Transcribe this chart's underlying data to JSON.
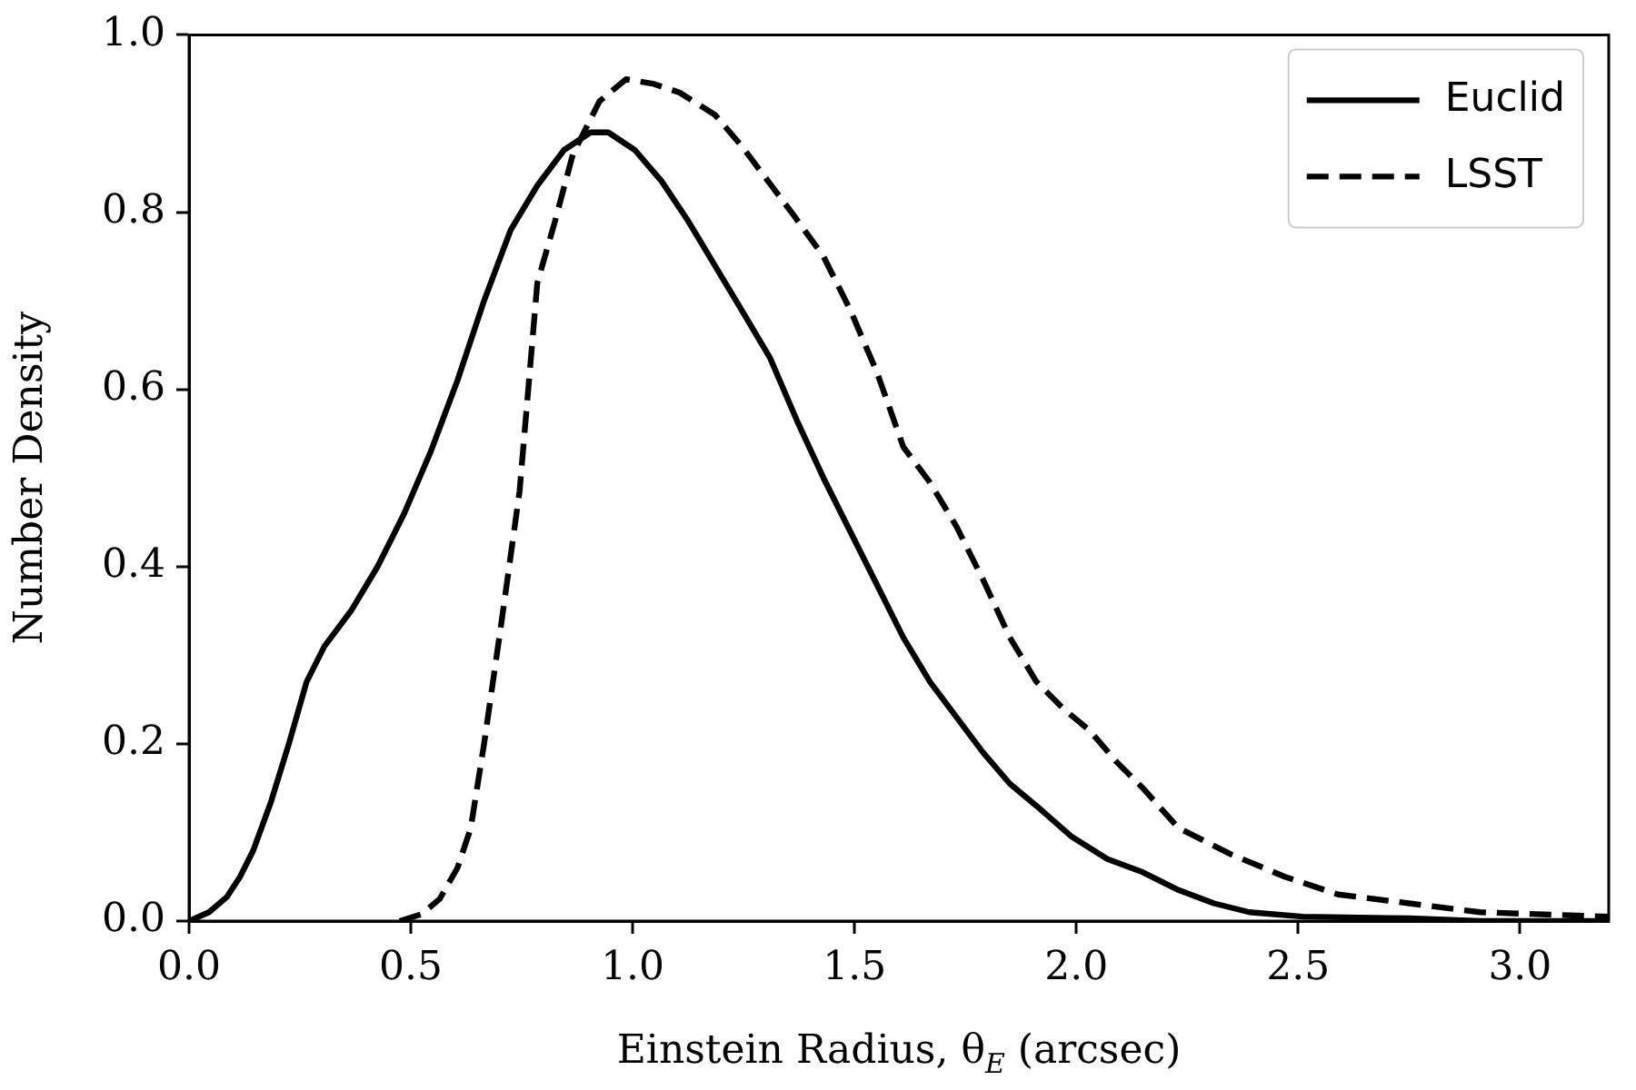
{
  "chart_data": {
    "type": "line",
    "xlabel": "Einstein Radius, θ$_{E}$ (arcsec)",
    "ylabel": "Number Density",
    "xlim": [
      0,
      3.2
    ],
    "ylim": [
      0,
      1
    ],
    "xticks": [
      {
        "value": 0,
        "label": "0.0"
      },
      {
        "value": 0.5,
        "label": "0.5"
      },
      {
        "value": 1,
        "label": "1.0"
      },
      {
        "value": 1.5,
        "label": "1.5"
      },
      {
        "value": 2,
        "label": "2.0"
      },
      {
        "value": 2.5,
        "label": "2.5"
      },
      {
        "value": 3,
        "label": "3.0"
      }
    ],
    "yticks": [
      {
        "value": 0,
        "label": "0.0"
      },
      {
        "value": 0.2,
        "label": "0.2"
      },
      {
        "value": 0.4,
        "label": "0.4"
      },
      {
        "value": 0.6,
        "label": "0.6"
      },
      {
        "value": 0.8,
        "label": "0.8"
      },
      {
        "value": 1,
        "label": "1.0"
      }
    ],
    "grid": false,
    "legend": "top right",
    "marker": "none",
    "series": [
      {
        "name": "Euclid",
        "color": "#000000",
        "line_style": "solid",
        "x": [
          0,
          0.045,
          0.085,
          0.115,
          0.145,
          0.185,
          0.225,
          0.265,
          0.305,
          0.365,
          0.425,
          0.485,
          0.545,
          0.605,
          0.665,
          0.725,
          0.785,
          0.845,
          0.905,
          0.945,
          1.005,
          1.065,
          1.125,
          1.185,
          1.245,
          1.31,
          1.37,
          1.43,
          1.49,
          1.55,
          1.61,
          1.67,
          1.73,
          1.79,
          1.85,
          1.91,
          1.99,
          2.07,
          2.15,
          2.23,
          2.31,
          2.39,
          2.51,
          2.75,
          2.91,
          3.2
        ],
        "values": [
          0,
          0.01,
          0.027,
          0.05,
          0.08,
          0.135,
          0.2,
          0.27,
          0.31,
          0.35,
          0.4,
          0.46,
          0.53,
          0.61,
          0.7,
          0.78,
          0.83,
          0.87,
          0.89,
          0.89,
          0.87,
          0.835,
          0.79,
          0.74,
          0.69,
          0.635,
          0.565,
          0.5,
          0.44,
          0.38,
          0.32,
          0.27,
          0.23,
          0.19,
          0.155,
          0.13,
          0.095,
          0.07,
          0.055,
          0.035,
          0.02,
          0.01,
          0.005,
          0.003,
          0,
          0
        ]
      },
      {
        "name": "LSST",
        "color": "#000000",
        "line_style": "dashed",
        "x": [
          0.475,
          0.525,
          0.565,
          0.605,
          0.635,
          0.665,
          0.705,
          0.745,
          0.785,
          0.825,
          0.865,
          0.925,
          0.985,
          1.045,
          1.105,
          1.185,
          1.245,
          1.305,
          1.365,
          1.43,
          1.49,
          1.55,
          1.61,
          1.67,
          1.73,
          1.79,
          1.85,
          1.91,
          1.97,
          2.03,
          2.09,
          2.15,
          2.23,
          2.35,
          2.47,
          2.59,
          2.75,
          2.91,
          3.2
        ],
        "values": [
          0,
          0.008,
          0.025,
          0.06,
          0.105,
          0.2,
          0.34,
          0.485,
          0.72,
          0.79,
          0.865,
          0.925,
          0.95,
          0.945,
          0.935,
          0.91,
          0.875,
          0.835,
          0.795,
          0.75,
          0.69,
          0.62,
          0.535,
          0.495,
          0.445,
          0.385,
          0.32,
          0.27,
          0.24,
          0.215,
          0.18,
          0.15,
          0.105,
          0.075,
          0.05,
          0.03,
          0.02,
          0.01,
          0.005
        ]
      }
    ]
  }
}
